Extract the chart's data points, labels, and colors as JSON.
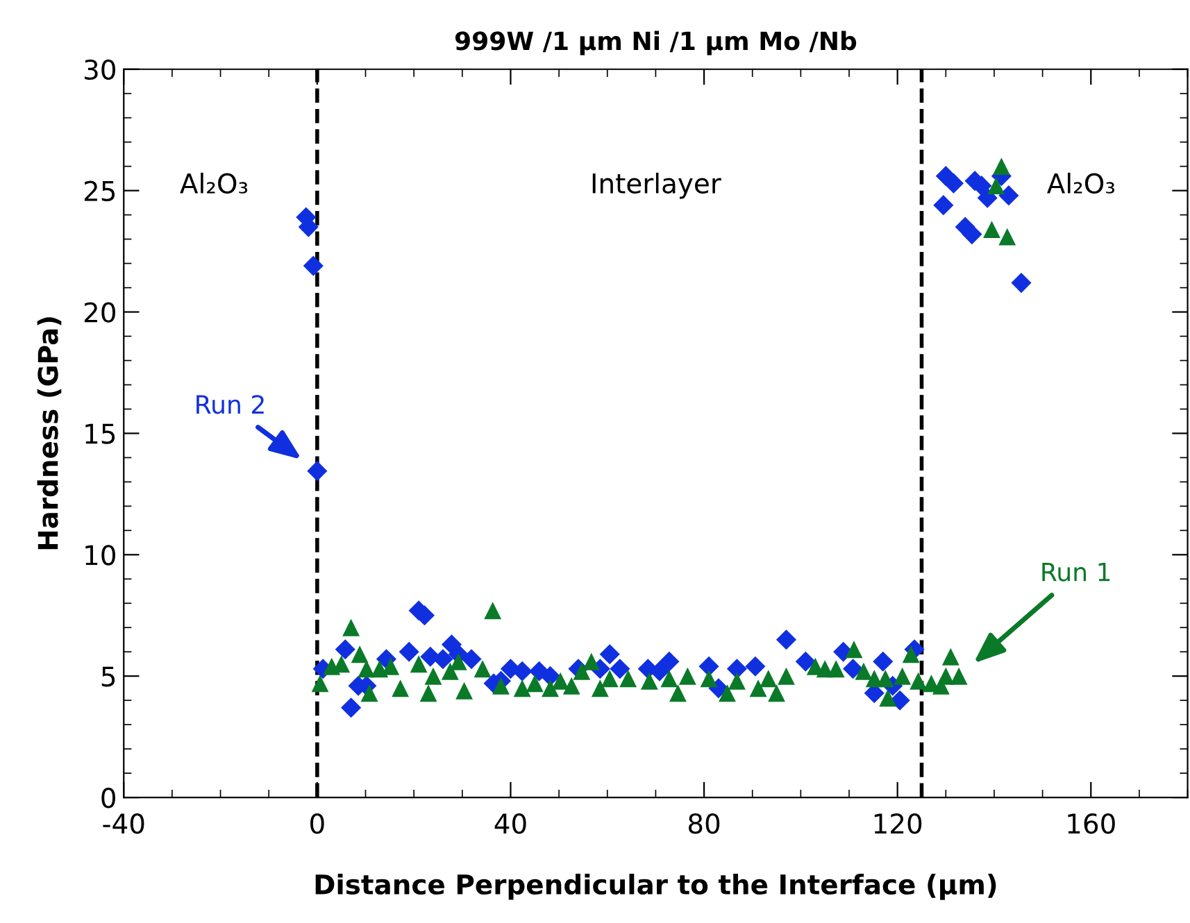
{
  "chart_data": {
    "type": "scatter",
    "title": "999W /1 µm Ni /1 µm Mo /Nb",
    "xlabel": "Distance Perpendicular to the Interface (µm)",
    "ylabel": "Hardness (GPa)",
    "xlim": [
      -40,
      180
    ],
    "xticks": [
      -40,
      0,
      40,
      80,
      120,
      160
    ],
    "ylim": [
      0,
      30
    ],
    "yticks": [
      0,
      5,
      10,
      15,
      20,
      25,
      30
    ],
    "grid": false,
    "legend": false,
    "ref_lines": [
      {
        "axis": "x",
        "value": 0,
        "color": "#000000",
        "line_style": "dashed"
      },
      {
        "axis": "x",
        "value": 125,
        "color": "#000000",
        "line_style": "dashed"
      }
    ],
    "annotations": [
      "Al₂O₃",
      "Interlayer",
      "Al₂O₃"
    ],
    "series": [
      {
        "name": "Run 2",
        "color": "#1030e0",
        "marker": "diamond",
        "x": [
          -2.3,
          -1.8,
          -0.8,
          0,
          1.2,
          5.8,
          7,
          8.5,
          10.2,
          14.3,
          15.2,
          19,
          21,
          22.2,
          23.4,
          26,
          27.8,
          29.2,
          31.9,
          36.5,
          38,
          40,
          42.4,
          45.9,
          48.2,
          54,
          58.5,
          60.5,
          62.6,
          68.4,
          70.8,
          72.8,
          81,
          83,
          86.8,
          90.6,
          97,
          101,
          108.8,
          110.8,
          115.2,
          117,
          119,
          120.5,
          123.5,
          129.5,
          130,
          131.6,
          134,
          135.4,
          136,
          137.4,
          138.6,
          141.5,
          143,
          145.6
        ],
        "values": [
          23.9,
          23.5,
          21.9,
          13.45,
          5.3,
          6.1,
          3.7,
          4.6,
          4.6,
          5.7,
          null,
          6.0,
          7.7,
          7.5,
          5.8,
          5.7,
          6.3,
          5.9,
          5.7,
          4.7,
          4.8,
          5.3,
          5.2,
          5.2,
          5.0,
          5.3,
          5.3,
          5.9,
          5.3,
          5.3,
          5.2,
          5.6,
          5.4,
          4.5,
          5.3,
          5.4,
          6.5,
          5.6,
          6.0,
          5.3,
          4.3,
          5.6,
          4.6,
          4.0,
          6.1,
          24.4,
          25.6,
          25.3,
          23.5,
          23.2,
          25.4,
          25.2,
          24.7,
          25.6,
          24.8,
          21.2
        ]
      },
      {
        "name": "Run 1",
        "color": "#0a7a28",
        "marker": "triangle",
        "x": [
          0.6,
          3,
          5,
          7,
          8.8,
          10.2,
          10.8,
          12.9,
          15.2,
          17.2,
          21,
          23,
          24,
          27.5,
          29.2,
          30.4,
          34.2,
          36.3,
          38,
          42.4,
          45,
          48.2,
          50.3,
          52.6,
          54.7,
          56.7,
          58.5,
          60.5,
          64.3,
          68.7,
          72.8,
          74.6,
          76.6,
          81,
          84.8,
          86.8,
          91.2,
          93.3,
          95,
          97,
          103,
          105,
          107.3,
          111,
          113,
          115.2,
          117.5,
          118,
          121,
          122.8,
          124.3,
          127,
          129,
          130,
          131,
          132.7,
          139.5,
          140.4,
          141.5,
          142.7
        ],
        "values": [
          4.7,
          5.4,
          5.5,
          7.0,
          5.9,
          5.3,
          4.3,
          5.3,
          5.4,
          4.5,
          5.5,
          4.3,
          5.0,
          5.2,
          5.6,
          4.4,
          5.3,
          7.7,
          4.6,
          4.5,
          4.7,
          4.5,
          4.8,
          4.6,
          5.2,
          5.6,
          4.5,
          4.9,
          4.9,
          4.8,
          4.9,
          4.3,
          5.0,
          4.9,
          4.3,
          4.8,
          4.5,
          4.9,
          4.3,
          5.0,
          5.4,
          5.3,
          5.3,
          6.1,
          5.2,
          4.9,
          4.9,
          4.1,
          5.0,
          5.9,
          4.8,
          4.7,
          4.6,
          5.0,
          5.8,
          5.0,
          23.4,
          25.2,
          26.0,
          23.1
        ]
      }
    ]
  }
}
